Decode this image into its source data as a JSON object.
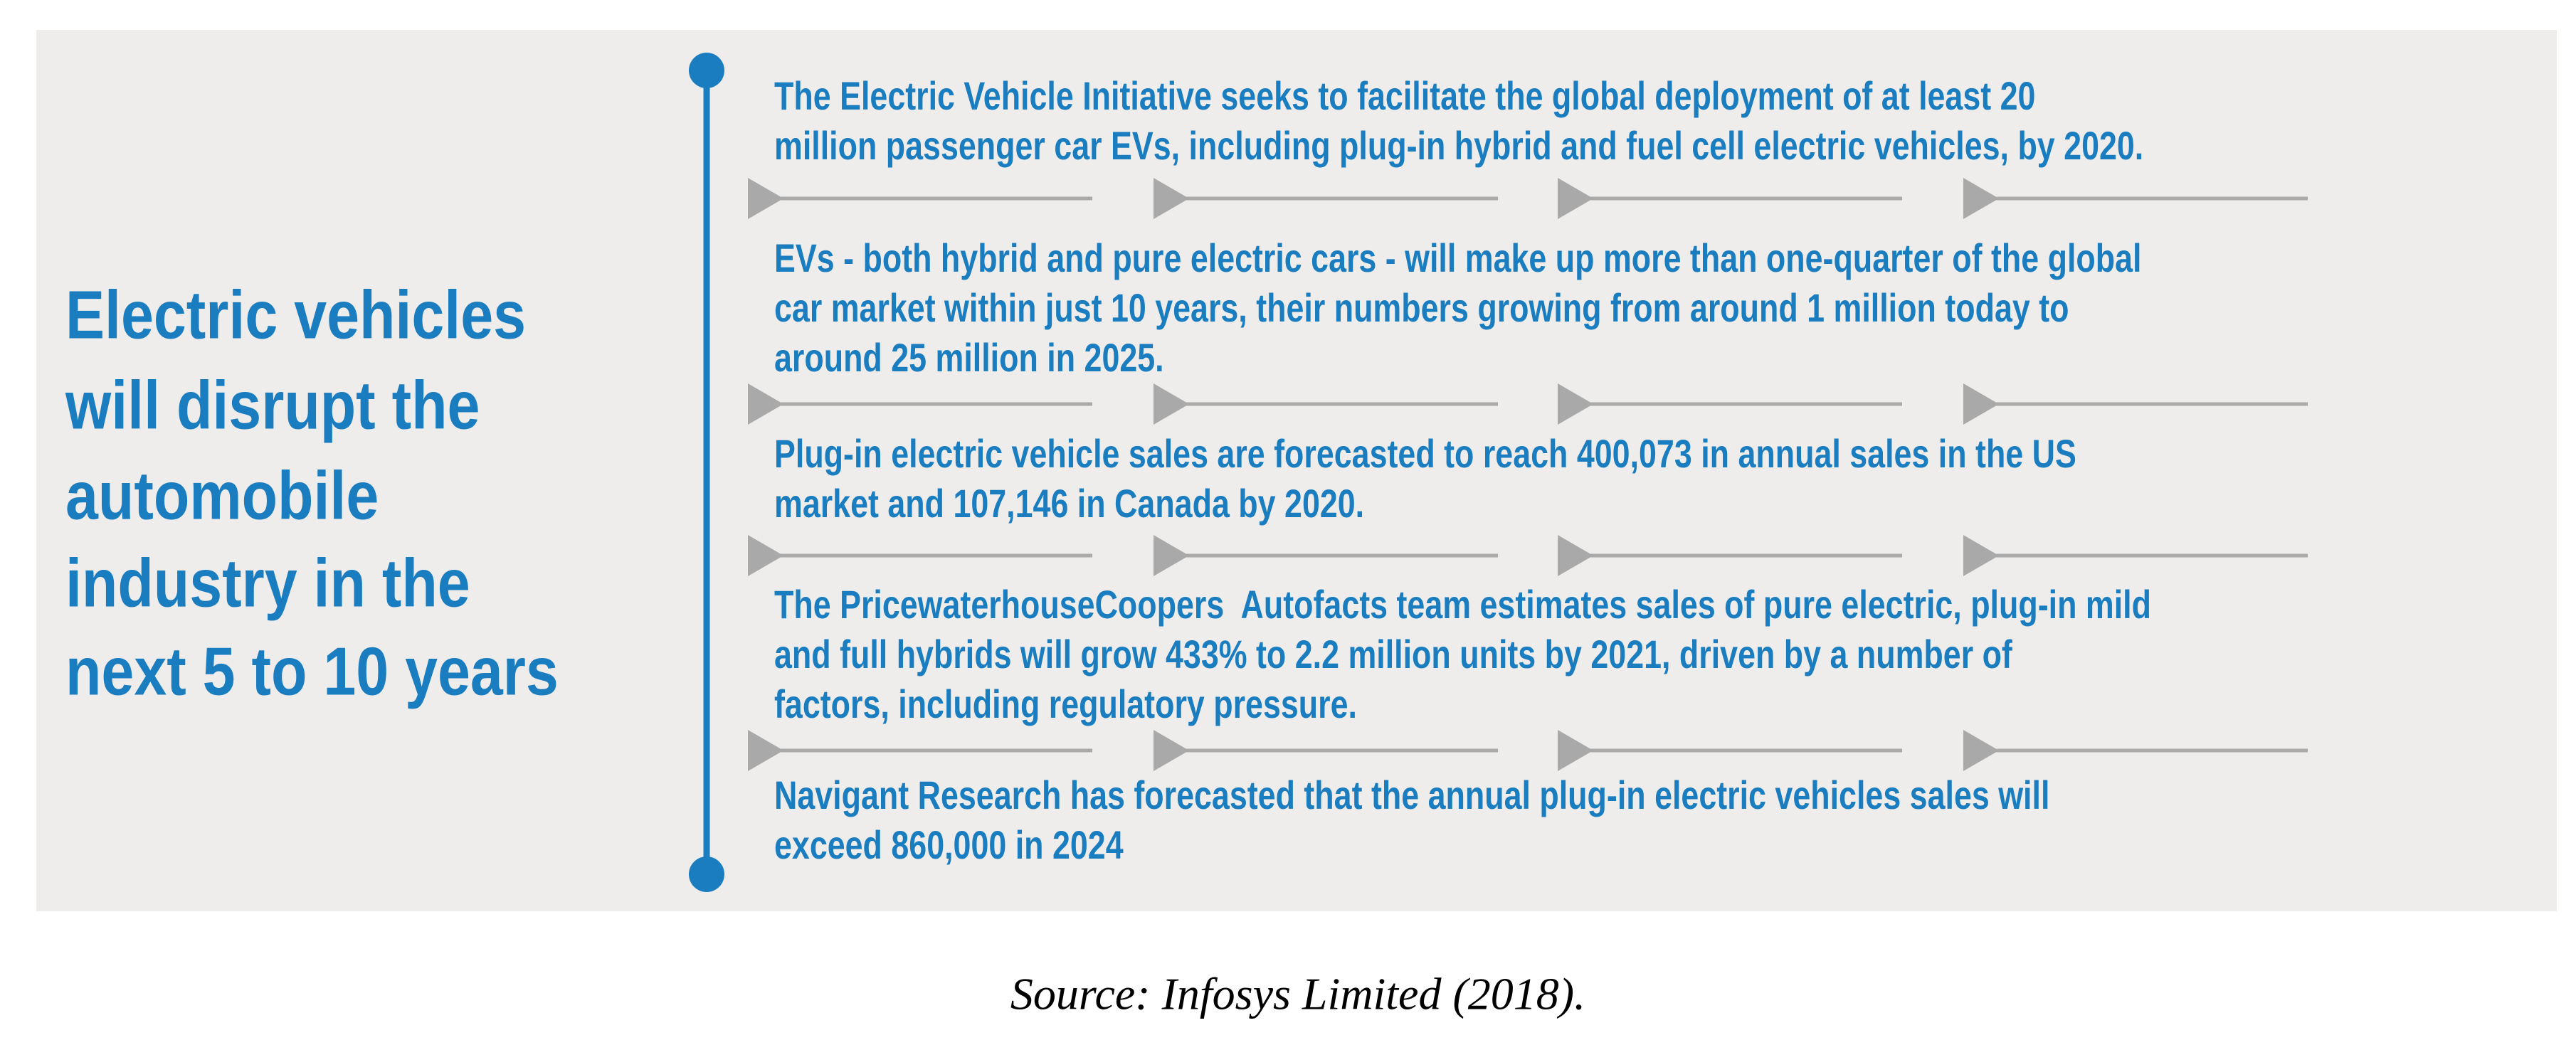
{
  "title_lines": [
    "Electric vehicles",
    "will disrupt the",
    "automobile",
    "industry in the",
    "next 5 to 10 years"
  ],
  "items": [
    {
      "lines": [
        "The Electric Vehicle Initiative seeks to facilitate the global deployment of at least 20",
        "million passenger car EVs, including plug-in hybrid and fuel cell electric vehicles, by 2020."
      ]
    },
    {
      "lines": [
        "EVs - both hybrid and pure electric cars - will make up more than one-quarter of the global",
        "car market within just 10 years, their numbers growing from around 1 million today to",
        "around 25 million in 2025."
      ]
    },
    {
      "lines": [
        "Plug-in electric vehicle sales are forecasted to reach 400,073 in annual sales in the US",
        "market and 107,146 in Canada by 2020."
      ]
    },
    {
      "lines": [
        "The PricewaterhouseCoopers  Autofacts team estimates sales of pure electric, plug-in mild",
        "and full hybrids will grow 433% to 2.2 million units by 2021, driven by a number of",
        "factors, including regulatory pressure."
      ]
    },
    {
      "lines": [
        "Navigant Research has forecasted that the annual plug-in electric vehicles sales will",
        "exceed 860,000 in 2024"
      ]
    }
  ],
  "source": "Source: Infosys Limited (2018)."
}
